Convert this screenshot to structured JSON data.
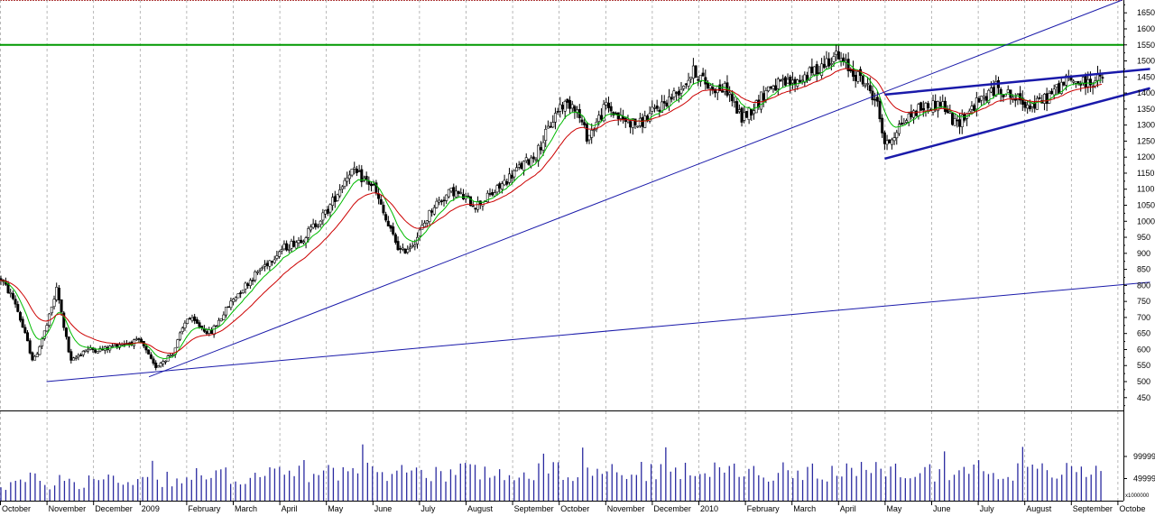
{
  "chart_data": {
    "type": "candlestick",
    "title": "",
    "price_axis": {
      "ylim": [
        410,
        1690
      ],
      "ticks": [
        450,
        500,
        550,
        600,
        650,
        700,
        750,
        800,
        850,
        900,
        950,
        1000,
        1050,
        1100,
        1150,
        1200,
        1250,
        1300,
        1350,
        1400,
        1450,
        1500,
        1550,
        1600,
        1650
      ],
      "tick_labels": [
        "450",
        "500",
        "550",
        "600",
        "650",
        "700",
        "750",
        "800",
        "850",
        "900",
        "950",
        "1000",
        "1050",
        "1100",
        "1150",
        "1200",
        "1250",
        "1300",
        "1350",
        "1400",
        "1450",
        "1500",
        "1550",
        "1600",
        "1650"
      ]
    },
    "volume_axis": {
      "ylim": [
        0,
        200000
      ],
      "ticks": [
        49999,
        99999
      ],
      "tick_labels": [
        "49999",
        "99999"
      ],
      "scale_note": "x1000000"
    },
    "x_axis": {
      "labels": [
        "October",
        "November",
        "December",
        "2009",
        "February",
        "March",
        "April",
        "May",
        "June",
        "July",
        "August",
        "September",
        "October",
        "November",
        "December",
        "2010",
        "February",
        "March",
        "April",
        "May",
        "June",
        "July",
        "August",
        "September",
        "Octobe"
      ]
    },
    "horizontal_line": {
      "value": 1550,
      "color": "#009900"
    },
    "trend_lines": [
      {
        "name": "long-uptrend",
        "from": {
          "month": 1.0,
          "price": 500
        },
        "to": {
          "month": 24.7,
          "price": 810
        }
      },
      {
        "name": "mid-uptrend",
        "from": {
          "month": 3.2,
          "price": 515
        },
        "to": {
          "month": 24.1,
          "price": 1690
        }
      },
      {
        "name": "channel-upper",
        "from": {
          "month": 19.0,
          "price": 1395
        },
        "to": {
          "month": 24.7,
          "price": 1475
        }
      },
      {
        "name": "channel-lower",
        "from": {
          "month": 19.0,
          "price": 1195
        },
        "to": {
          "month": 24.7,
          "price": 1415
        }
      }
    ],
    "price_path": [
      {
        "m": 0.0,
        "p": 820
      },
      {
        "m": 0.3,
        "p": 750
      },
      {
        "m": 0.7,
        "p": 560
      },
      {
        "m": 1.0,
        "p": 680
      },
      {
        "m": 1.2,
        "p": 790
      },
      {
        "m": 1.5,
        "p": 560
      },
      {
        "m": 1.8,
        "p": 600
      },
      {
        "m": 2.2,
        "p": 600
      },
      {
        "m": 2.6,
        "p": 620
      },
      {
        "m": 3.0,
        "p": 625
      },
      {
        "m": 3.3,
        "p": 545
      },
      {
        "m": 3.7,
        "p": 590
      },
      {
        "m": 4.0,
        "p": 700
      },
      {
        "m": 4.5,
        "p": 650
      },
      {
        "m": 5.0,
        "p": 760
      },
      {
        "m": 5.5,
        "p": 840
      },
      {
        "m": 6.0,
        "p": 910
      },
      {
        "m": 6.5,
        "p": 950
      },
      {
        "m": 7.0,
        "p": 1030
      },
      {
        "m": 7.5,
        "p": 1160
      },
      {
        "m": 8.0,
        "p": 1110
      },
      {
        "m": 8.3,
        "p": 990
      },
      {
        "m": 8.6,
        "p": 900
      },
      {
        "m": 8.9,
        "p": 940
      },
      {
        "m": 9.3,
        "p": 1050
      },
      {
        "m": 9.7,
        "p": 1095
      },
      {
        "m": 10.2,
        "p": 1050
      },
      {
        "m": 10.6,
        "p": 1090
      },
      {
        "m": 11.0,
        "p": 1150
      },
      {
        "m": 11.5,
        "p": 1210
      },
      {
        "m": 12.0,
        "p": 1360
      },
      {
        "m": 12.3,
        "p": 1370
      },
      {
        "m": 12.6,
        "p": 1260
      },
      {
        "m": 13.0,
        "p": 1360
      },
      {
        "m": 13.3,
        "p": 1320
      },
      {
        "m": 13.7,
        "p": 1300
      },
      {
        "m": 14.0,
        "p": 1340
      },
      {
        "m": 14.5,
        "p": 1400
      },
      {
        "m": 14.9,
        "p": 1470
      },
      {
        "m": 15.2,
        "p": 1420
      },
      {
        "m": 15.6,
        "p": 1410
      },
      {
        "m": 15.9,
        "p": 1320
      },
      {
        "m": 16.2,
        "p": 1360
      },
      {
        "m": 16.5,
        "p": 1420
      },
      {
        "m": 17.0,
        "p": 1430
      },
      {
        "m": 17.5,
        "p": 1470
      },
      {
        "m": 17.9,
        "p": 1520
      },
      {
        "m": 18.1,
        "p": 1490
      },
      {
        "m": 18.5,
        "p": 1440
      },
      {
        "m": 18.8,
        "p": 1380
      },
      {
        "m": 19.0,
        "p": 1230
      },
      {
        "m": 19.3,
        "p": 1300
      },
      {
        "m": 19.7,
        "p": 1350
      },
      {
        "m": 20.2,
        "p": 1370
      },
      {
        "m": 20.5,
        "p": 1300
      },
      {
        "m": 20.9,
        "p": 1360
      },
      {
        "m": 21.4,
        "p": 1420
      },
      {
        "m": 21.8,
        "p": 1380
      },
      {
        "m": 22.2,
        "p": 1360
      },
      {
        "m": 22.5,
        "p": 1390
      },
      {
        "m": 22.9,
        "p": 1440
      },
      {
        "m": 23.3,
        "p": 1430
      },
      {
        "m": 23.7,
        "p": 1450
      }
    ],
    "moving_averages": [
      {
        "name": "short",
        "color": "#00bb00"
      },
      {
        "name": "long",
        "color": "#cc0000"
      }
    ],
    "grid": true
  }
}
